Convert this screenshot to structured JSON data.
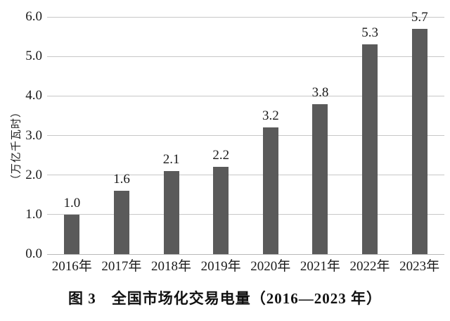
{
  "figure": {
    "caption": "图 3　全国市场化交易电量（2016—2023 年）"
  },
  "chart_data": {
    "type": "bar",
    "title": "图 3　全国市场化交易电量（2016—2023 年）",
    "categories": [
      "2016年",
      "2017年",
      "2018年",
      "2019年",
      "2020年",
      "2021年",
      "2022年",
      "2023年"
    ],
    "values": [
      1.0,
      1.6,
      2.1,
      2.2,
      3.2,
      3.8,
      5.3,
      5.7
    ],
    "value_labels": [
      "1.0",
      "1.6",
      "2.1",
      "2.2",
      "3.2",
      "3.8",
      "5.3",
      "5.7"
    ],
    "xlabel": "",
    "ylabel": "（万亿千瓦时）",
    "ylim": [
      0,
      6
    ],
    "yticks": [
      "0.0",
      "1.0",
      "2.0",
      "3.0",
      "4.0",
      "5.0",
      "6.0"
    ],
    "grid": "horizontal",
    "legend": "none",
    "bar_color": "#5a5a5a",
    "gridline_color": "#c7c7c7",
    "text_color": "#1a1a1a",
    "background_color": "#ffffff"
  }
}
